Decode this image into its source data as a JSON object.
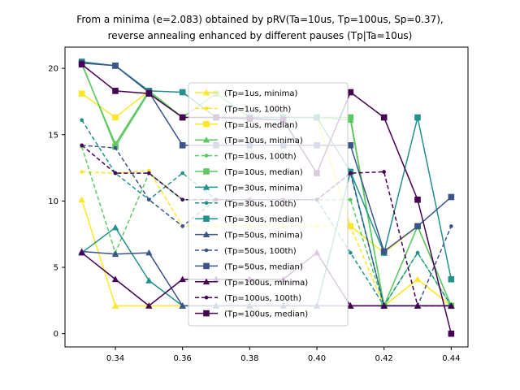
{
  "chart_data": {
    "type": "line",
    "title_lines": [
      "From a minima (e=2.083) obtained by pRV(Ta=10us, Tp=100us, Sp=0.37),",
      "reverse annealing enhanced by different pauses (Tp|Ta=10us)"
    ],
    "xlabel": "",
    "ylabel": "",
    "xlim": [
      0.325,
      0.445
    ],
    "ylim": [
      -1.0,
      21.6
    ],
    "xticks": [
      "0.34",
      "0.36",
      "0.38",
      "0.40",
      "0.42",
      "0.44"
    ],
    "xtick_values": [
      0.34,
      0.36,
      0.38,
      0.4,
      0.42,
      0.44
    ],
    "yticks": [
      "0",
      "5",
      "10",
      "15",
      "20"
    ],
    "ytick_values": [
      0,
      5,
      10,
      15,
      20
    ],
    "grid": false,
    "legend_position": "center",
    "x": [
      0.33,
      0.34,
      0.35,
      0.36,
      0.37,
      0.38,
      0.39,
      0.4,
      0.41,
      0.42,
      0.43,
      0.44
    ],
    "series": [
      {
        "name": "(Tp=1us, minima)",
        "color": "#fde725",
        "marker": "triangle",
        "dash": false,
        "values": [
          10.1,
          2.1,
          2.1,
          2.1,
          2.1,
          2.1,
          2.1,
          2.1,
          2.1,
          2.1,
          4.1,
          2.1
        ]
      },
      {
        "name": "(Tp=1us, 100th)",
        "color": "#fde725",
        "marker": "dot",
        "dash": true,
        "values": [
          12.2,
          12.1,
          12.3,
          8.1,
          8.1,
          8.1,
          8.1,
          8.1,
          8.1,
          2.1,
          4.1,
          2.1
        ]
      },
      {
        "name": "(Tp=1us, median)",
        "color": "#fde725",
        "marker": "square",
        "dash": false,
        "values": [
          18.1,
          16.3,
          18.3,
          16.3,
          16.3,
          16.3,
          16.3,
          16.3,
          8.1,
          6.1,
          8.1,
          2.1
        ]
      },
      {
        "name": "(Tp=10us, minima)",
        "color": "#5ec962",
        "marker": "triangle",
        "dash": false,
        "values": [
          20.3,
          14.3,
          18.3,
          16.3,
          16.3,
          16.3,
          16.3,
          16.3,
          16.1,
          2.1,
          8.1,
          2.1
        ]
      },
      {
        "name": "(Tp=10us, 100th)",
        "color": "#5ec962",
        "marker": "dot",
        "dash": true,
        "values": [
          14.1,
          6.1,
          12.1,
          10.1,
          10.1,
          10.1,
          10.1,
          10.1,
          10.1,
          2.1,
          6.1,
          2.1
        ]
      },
      {
        "name": "(Tp=10us, median)",
        "color": "#5ec962",
        "marker": "square",
        "dash": false,
        "values": [
          20.4,
          14.1,
          18.2,
          16.3,
          18.1,
          16.3,
          16.3,
          16.3,
          16.3,
          2.1,
          8.1,
          2.1
        ]
      },
      {
        "name": "(Tp=30us, minima)",
        "color": "#21918c",
        "marker": "triangle",
        "dash": false,
        "values": [
          6.1,
          8.0,
          4.0,
          2.1,
          2.1,
          2.1,
          2.1,
          2.1,
          12.2,
          2.1,
          2.1,
          2.1
        ]
      },
      {
        "name": "(Tp=30us, 100th)",
        "color": "#21918c",
        "marker": "dot",
        "dash": true,
        "values": [
          16.1,
          12.1,
          10.1,
          12.1,
          10.1,
          10.1,
          10.1,
          10.1,
          6.1,
          2.1,
          6.1,
          2.1
        ]
      },
      {
        "name": "(Tp=30us, median)",
        "color": "#21918c",
        "marker": "square",
        "dash": false,
        "values": [
          20.5,
          20.2,
          18.3,
          18.2,
          16.3,
          16.3,
          16.3,
          16.3,
          12.2,
          6.1,
          16.3,
          4.1
        ]
      },
      {
        "name": "(Tp=50us, minima)",
        "color": "#3b528b",
        "marker": "triangle",
        "dash": false,
        "values": [
          6.2,
          6.0,
          6.1,
          2.1,
          2.1,
          2.1,
          2.1,
          2.1,
          2.1,
          2.1,
          2.1,
          2.1
        ]
      },
      {
        "name": "(Tp=50us, 100th)",
        "color": "#3b528b",
        "marker": "dot",
        "dash": true,
        "values": [
          14.2,
          14.0,
          10.1,
          8.1,
          10.1,
          10.1,
          10.1,
          10.1,
          12.1,
          2.1,
          2.1,
          8.1
        ]
      },
      {
        "name": "(Tp=50us, median)",
        "color": "#3b528b",
        "marker": "square",
        "dash": false,
        "values": [
          20.4,
          20.2,
          18.2,
          14.2,
          14.2,
          14.2,
          14.2,
          14.2,
          14.2,
          6.2,
          8.1,
          10.3
        ]
      },
      {
        "name": "(Tp=100us, minima)",
        "color": "#440154",
        "marker": "triangle",
        "dash": false,
        "values": [
          6.1,
          4.1,
          2.1,
          4.1,
          4.1,
          4.1,
          4.1,
          6.1,
          2.1,
          2.1,
          2.1,
          2.1
        ]
      },
      {
        "name": "(Tp=100us, 100th)",
        "color": "#440154",
        "marker": "dot",
        "dash": true,
        "values": [
          14.2,
          12.1,
          12.1,
          10.1,
          10.1,
          10.1,
          10.1,
          10.1,
          12.1,
          12.2,
          2.1,
          2.1
        ]
      },
      {
        "name": "(Tp=100us, median)",
        "color": "#440154",
        "marker": "square",
        "dash": false,
        "values": [
          20.3,
          18.3,
          18.1,
          16.3,
          16.3,
          16.2,
          16.1,
          12.1,
          18.2,
          16.3,
          10.1,
          0.0
        ]
      }
    ]
  }
}
